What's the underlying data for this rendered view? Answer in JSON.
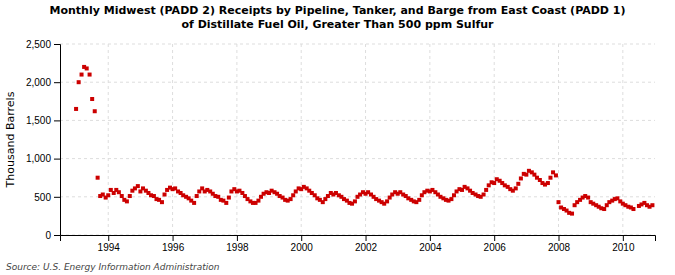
{
  "chart_data": {
    "type": "scatter",
    "title": "Monthly Midwest (PADD 2) Receipts by Pipeline, Tanker, and Barge from East Coast (PADD 1)",
    "subtitle": "of Distillate Fuel Oil, Greater Than 500 ppm Sulfur",
    "ylabel": "Thousand Barrels",
    "annotations": [
      "Source: U.S. Energy Information Administration"
    ],
    "color": "#CC0000",
    "marker": "square",
    "grid": true,
    "xlim": [
      1992.5,
      2011.0
    ],
    "xticks": [
      1994,
      1996,
      1998,
      2000,
      2002,
      2004,
      2006,
      2008,
      2010
    ],
    "ylim": [
      0,
      2500
    ],
    "yticks": [
      0,
      500,
      {
        "value": 1000,
        "label": "1,000"
      },
      {
        "value": 1500,
        "label": "1,500"
      },
      {
        "value": 2000,
        "label": "2,000"
      },
      {
        "value": 2500,
        "label": "2,500"
      }
    ],
    "x": [
      1993,
      1993.08,
      1993.17,
      1993.25,
      1993.33,
      1993.42,
      1993.5,
      1993.58,
      1993.67,
      1993.75,
      1993.83,
      1993.92,
      1994,
      1994.08,
      1994.17,
      1994.25,
      1994.33,
      1994.42,
      1994.5,
      1994.58,
      1994.67,
      1994.75,
      1994.83,
      1994.92,
      1995,
      1995.08,
      1995.17,
      1995.25,
      1995.33,
      1995.42,
      1995.5,
      1995.58,
      1995.67,
      1995.75,
      1995.83,
      1995.92,
      1996,
      1996.08,
      1996.17,
      1996.25,
      1996.33,
      1996.42,
      1996.5,
      1996.58,
      1996.67,
      1996.75,
      1996.83,
      1996.92,
      1997,
      1997.08,
      1997.17,
      1997.25,
      1997.33,
      1997.42,
      1997.5,
      1997.58,
      1997.67,
      1997.75,
      1997.83,
      1997.92,
      1998,
      1998.08,
      1998.17,
      1998.25,
      1998.33,
      1998.42,
      1998.5,
      1998.58,
      1998.67,
      1998.75,
      1998.83,
      1998.92,
      1999,
      1999.08,
      1999.17,
      1999.25,
      1999.33,
      1999.42,
      1999.5,
      1999.58,
      1999.67,
      1999.75,
      1999.83,
      1999.92,
      2000,
      2000.08,
      2000.17,
      2000.25,
      2000.33,
      2000.42,
      2000.5,
      2000.58,
      2000.67,
      2000.75,
      2000.83,
      2000.92,
      2001,
      2001.08,
      2001.17,
      2001.25,
      2001.33,
      2001.42,
      2001.5,
      2001.58,
      2001.67,
      2001.75,
      2001.83,
      2001.92,
      2002,
      2002.08,
      2002.17,
      2002.25,
      2002.33,
      2002.42,
      2002.5,
      2002.58,
      2002.67,
      2002.75,
      2002.83,
      2002.92,
      2003,
      2003.08,
      2003.17,
      2003.25,
      2003.33,
      2003.42,
      2003.5,
      2003.58,
      2003.67,
      2003.75,
      2003.83,
      2003.92,
      2004,
      2004.08,
      2004.17,
      2004.25,
      2004.33,
      2004.42,
      2004.5,
      2004.58,
      2004.67,
      2004.75,
      2004.83,
      2004.92,
      2005,
      2005.08,
      2005.17,
      2005.25,
      2005.33,
      2005.42,
      2005.5,
      2005.58,
      2005.67,
      2005.75,
      2005.83,
      2005.92,
      2006,
      2006.08,
      2006.17,
      2006.25,
      2006.33,
      2006.42,
      2006.5,
      2006.58,
      2006.67,
      2006.75,
      2006.83,
      2006.92,
      2007,
      2007.08,
      2007.17,
      2007.25,
      2007.33,
      2007.42,
      2007.5,
      2007.58,
      2007.67,
      2007.75,
      2007.83,
      2007.92,
      2008,
      2008.08,
      2008.17,
      2008.25,
      2008.33,
      2008.42,
      2008.5,
      2008.58,
      2008.67,
      2008.75,
      2008.83,
      2008.92,
      2009,
      2009.08,
      2009.17,
      2009.25,
      2009.33,
      2009.42,
      2009.5,
      2009.58,
      2009.67,
      2009.75,
      2009.83,
      2009.92,
      2010,
      2010.08,
      2010.17,
      2010.25,
      2010.33,
      2010.5,
      2010.58,
      2010.67,
      2010.75,
      2010.83,
      2010.92
    ],
    "values": [
      1650,
      2000,
      2100,
      2200,
      2180,
      2100,
      1780,
      1620,
      750,
      510,
      530,
      490,
      520,
      590,
      550,
      590,
      560,
      510,
      460,
      440,
      510,
      580,
      610,
      640,
      570,
      610,
      580,
      550,
      520,
      510,
      470,
      460,
      430,
      530,
      590,
      620,
      600,
      610,
      570,
      550,
      520,
      500,
      480,
      450,
      420,
      510,
      570,
      610,
      570,
      590,
      570,
      540,
      510,
      500,
      460,
      450,
      420,
      490,
      570,
      600,
      570,
      580,
      550,
      510,
      470,
      440,
      420,
      420,
      450,
      500,
      540,
      560,
      550,
      580,
      560,
      540,
      510,
      490,
      460,
      450,
      470,
      520,
      570,
      610,
      600,
      630,
      610,
      580,
      550,
      520,
      480,
      460,
      430,
      470,
      510,
      550,
      530,
      550,
      520,
      500,
      470,
      450,
      420,
      410,
      440,
      500,
      530,
      560,
      540,
      560,
      530,
      500,
      470,
      450,
      430,
      410,
      440,
      490,
      530,
      560,
      540,
      560,
      530,
      510,
      480,
      460,
      440,
      430,
      460,
      520,
      560,
      580,
      570,
      590,
      560,
      530,
      500,
      480,
      460,
      450,
      470,
      520,
      570,
      600,
      590,
      630,
      610,
      580,
      550,
      530,
      510,
      500,
      530,
      590,
      650,
      690,
      680,
      730,
      710,
      680,
      650,
      630,
      600,
      580,
      610,
      670,
      740,
      800,
      790,
      840,
      820,
      790,
      750,
      720,
      680,
      660,
      680,
      750,
      820,
      780,
      430,
      360,
      340,
      320,
      290,
      280,
      390,
      430,
      460,
      490,
      510,
      490,
      430,
      410,
      390,
      370,
      350,
      340,
      390,
      430,
      450,
      470,
      480,
      440,
      410,
      390,
      370,
      360,
      340,
      380,
      400,
      420,
      390,
      370,
      390
    ]
  }
}
